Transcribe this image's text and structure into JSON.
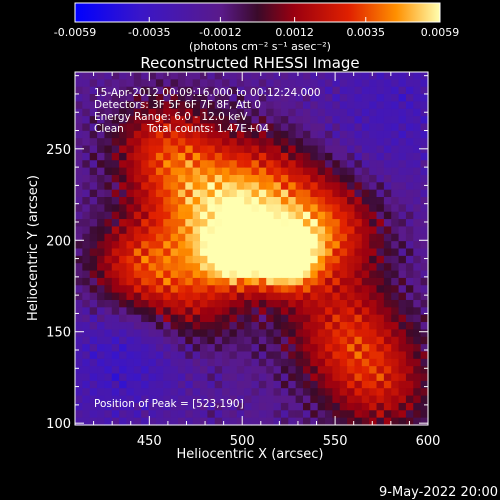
{
  "chart_data": {
    "type": "heatmap",
    "title": "Reconstructed RHESSI Image",
    "xlabel": "Heliocentric X (arcsec)",
    "ylabel": "Heliocentric Y (arcsec)",
    "xlim": [
      410,
      600
    ],
    "ylim": [
      99,
      292
    ],
    "x_ticks": [
      450,
      500,
      550,
      600
    ],
    "y_ticks": [
      100,
      150,
      200,
      250
    ],
    "colorbar": {
      "range": [
        -0.0059,
        0.0059
      ],
      "ticks": [
        "-0.0059",
        "-0.0035",
        "-0.0012",
        "0.0012",
        "0.0035",
        "0.0059"
      ],
      "unit_label": "(photons cm⁻² s⁻¹ asec⁻²)",
      "colormap": "ct5-like (blue–purple–red–orange–yellow–white)"
    },
    "annotations": [
      "15-Apr-2012 00:09:16.000 to 00:12:24.000",
      "Detectors: 3F 5F 6F 7F 8F, Att 0",
      "Energy Range: 6.0 - 12.0 keV",
      "Clean",
      "Total counts: 1.47E+04"
    ],
    "peak_label": "Position of Peak = [523,190]",
    "peak": [
      523,
      190
    ],
    "sources": [
      {
        "x": 523,
        "y": 190,
        "sigma": 12,
        "amp": 0.0059
      },
      {
        "x": 497,
        "y": 193,
        "sigma": 11,
        "amp": 0.0045
      },
      {
        "x": 512,
        "y": 222,
        "sigma": 24,
        "amp": 0.003
      },
      {
        "x": 480,
        "y": 215,
        "sigma": 24,
        "amp": 0.0026
      },
      {
        "x": 548,
        "y": 205,
        "sigma": 20,
        "amp": 0.0024
      },
      {
        "x": 458,
        "y": 250,
        "sigma": 20,
        "amp": 0.0022
      },
      {
        "x": 470,
        "y": 170,
        "sigma": 22,
        "amp": 0.0021
      },
      {
        "x": 555,
        "y": 150,
        "sigma": 22,
        "amp": 0.0022
      },
      {
        "x": 575,
        "y": 120,
        "sigma": 20,
        "amp": 0.0016
      },
      {
        "x": 440,
        "y": 185,
        "sigma": 18,
        "amp": 0.0018
      }
    ],
    "background": -0.0016,
    "dark_regions": [
      {
        "x": 445,
        "y": 145,
        "sigma": 24,
        "amp": -0.0022
      },
      {
        "x": 580,
        "y": 270,
        "sigma": 30,
        "amp": -0.0014
      },
      {
        "x": 420,
        "y": 115,
        "sigma": 20,
        "amp": -0.0006
      }
    ]
  },
  "footer": {
    "date": "9-May-2022 20:00"
  }
}
